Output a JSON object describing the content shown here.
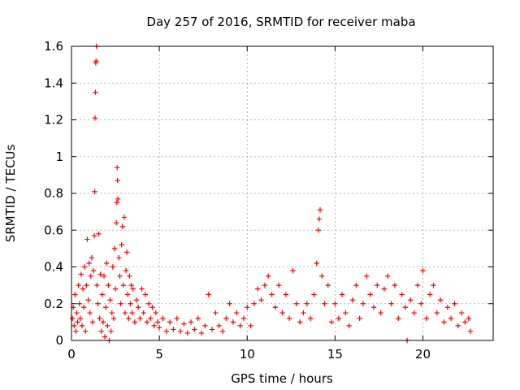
{
  "chart_data": {
    "type": "scatter",
    "title": "Day 257 of 2016, SRMTID for receiver maba",
    "xlabel": "GPS time / hours",
    "ylabel": "SRMTID / TECUs",
    "xlim": [
      0,
      24
    ],
    "ylim": [
      0,
      1.6
    ],
    "xticks": [
      "0",
      "5",
      "10",
      "15",
      "20"
    ],
    "yticks": [
      "0",
      "0.2",
      "0.4",
      "0.6",
      "0.8",
      "1",
      "1.2",
      "1.4",
      "1.6"
    ],
    "grid": true,
    "marker": "plus",
    "series_color": "#ff0000",
    "series": [
      {
        "name": "SRMTID",
        "points": [
          [
            0.05,
            0.12
          ],
          [
            0.1,
            0.18
          ],
          [
            0.15,
            0.08
          ],
          [
            0.2,
            0.25
          ],
          [
            0.25,
            0.05
          ],
          [
            0.3,
            0.15
          ],
          [
            0.35,
            0.1
          ],
          [
            0.4,
            0.3
          ],
          [
            0.45,
            0.2
          ],
          [
            0.5,
            0.12
          ],
          [
            0.55,
            0.36
          ],
          [
            0.6,
            0.08
          ],
          [
            0.65,
            0.28
          ],
          [
            0.7,
            0.18
          ],
          [
            0.75,
            0.4
          ],
          [
            0.8,
            0.05
          ],
          [
            0.85,
            0.3
          ],
          [
            0.9,
            0.55
          ],
          [
            0.95,
            0.22
          ],
          [
            1.0,
            0.42
          ],
          [
            1.05,
            0.15
          ],
          [
            1.1,
            0.35
          ],
          [
            1.15,
            0.45
          ],
          [
            1.2,
            0.1
          ],
          [
            1.25,
            0.38
          ],
          [
            1.3,
            0.57
          ],
          [
            1.32,
            0.81
          ],
          [
            1.34,
            1.21
          ],
          [
            1.36,
            1.35
          ],
          [
            1.38,
            1.51
          ],
          [
            1.4,
            1.52
          ],
          [
            1.42,
            1.6
          ],
          [
            1.45,
            0.3
          ],
          [
            1.5,
            0.2
          ],
          [
            1.55,
            0.58
          ],
          [
            1.6,
            0.12
          ],
          [
            1.65,
            0.36
          ],
          [
            1.7,
            0.05
          ],
          [
            1.75,
            0.25
          ],
          [
            1.8,
            0.1
          ],
          [
            1.85,
            0.35
          ],
          [
            1.9,
            0.02
          ],
          [
            1.95,
            0.18
          ],
          [
            2.0,
            0.42
          ],
          [
            2.05,
            0.08
          ],
          [
            2.1,
            0.3
          ],
          [
            2.15,
            0.0
          ],
          [
            2.2,
            0.22
          ],
          [
            2.25,
            0.05
          ],
          [
            2.3,
            0.15
          ],
          [
            2.35,
            0.4
          ],
          [
            2.4,
            0.12
          ],
          [
            2.45,
            0.5
          ],
          [
            2.5,
            0.28
          ],
          [
            2.55,
            0.64
          ],
          [
            2.58,
            0.75
          ],
          [
            2.6,
            0.94
          ],
          [
            2.62,
            0.87
          ],
          [
            2.64,
            0.77
          ],
          [
            2.7,
            0.45
          ],
          [
            2.75,
            0.35
          ],
          [
            2.8,
            0.2
          ],
          [
            2.85,
            0.52
          ],
          [
            2.9,
            0.62
          ],
          [
            2.95,
            0.3
          ],
          [
            3.0,
            0.67
          ],
          [
            3.05,
            0.15
          ],
          [
            3.1,
            0.38
          ],
          [
            3.15,
            0.48
          ],
          [
            3.2,
            0.25
          ],
          [
            3.25,
            0.12
          ],
          [
            3.3,
            0.35
          ],
          [
            3.35,
            0.2
          ],
          [
            3.4,
            0.3
          ],
          [
            3.45,
            0.15
          ],
          [
            3.5,
            0.28
          ],
          [
            3.6,
            0.1
          ],
          [
            3.7,
            0.22
          ],
          [
            3.8,
            0.18
          ],
          [
            3.9,
            0.12
          ],
          [
            4.0,
            0.28
          ],
          [
            4.1,
            0.15
          ],
          [
            4.2,
            0.25
          ],
          [
            4.3,
            0.1
          ],
          [
            4.4,
            0.2
          ],
          [
            4.5,
            0.12
          ],
          [
            4.6,
            0.18
          ],
          [
            4.7,
            0.08
          ],
          [
            4.8,
            0.15
          ],
          [
            4.9,
            0.1
          ],
          [
            5.0,
            0.07
          ],
          [
            5.2,
            0.12
          ],
          [
            5.4,
            0.05
          ],
          [
            5.6,
            0.1
          ],
          [
            5.8,
            0.06
          ],
          [
            6.0,
            0.12
          ],
          [
            6.2,
            0.05
          ],
          [
            6.4,
            0.09
          ],
          [
            6.6,
            0.04
          ],
          [
            6.8,
            0.1
          ],
          [
            7.0,
            0.06
          ],
          [
            7.2,
            0.12
          ],
          [
            7.4,
            0.04
          ],
          [
            7.6,
            0.08
          ],
          [
            7.8,
            0.25
          ],
          [
            8.0,
            0.06
          ],
          [
            8.2,
            0.15
          ],
          [
            8.4,
            0.08
          ],
          [
            8.6,
            0.05
          ],
          [
            8.8,
            0.12
          ],
          [
            9.0,
            0.2
          ],
          [
            9.2,
            0.1
          ],
          [
            9.4,
            0.15
          ],
          [
            9.6,
            0.08
          ],
          [
            9.8,
            0.12
          ],
          [
            10.0,
            0.18
          ],
          [
            10.2,
            0.08
          ],
          [
            10.4,
            0.2
          ],
          [
            10.6,
            0.28
          ],
          [
            10.8,
            0.22
          ],
          [
            11.0,
            0.3
          ],
          [
            11.2,
            0.35
          ],
          [
            11.4,
            0.25
          ],
          [
            11.6,
            0.18
          ],
          [
            11.8,
            0.3
          ],
          [
            12.0,
            0.15
          ],
          [
            12.2,
            0.25
          ],
          [
            12.4,
            0.12
          ],
          [
            12.6,
            0.38
          ],
          [
            12.8,
            0.2
          ],
          [
            13.0,
            0.1
          ],
          [
            13.2,
            0.15
          ],
          [
            13.4,
            0.2
          ],
          [
            13.6,
            0.12
          ],
          [
            13.8,
            0.25
          ],
          [
            13.95,
            0.42
          ],
          [
            14.05,
            0.6
          ],
          [
            14.1,
            0.66
          ],
          [
            14.15,
            0.71
          ],
          [
            14.25,
            0.35
          ],
          [
            14.4,
            0.2
          ],
          [
            14.6,
            0.3
          ],
          [
            14.8,
            0.1
          ],
          [
            15.0,
            0.2
          ],
          [
            15.2,
            0.12
          ],
          [
            15.4,
            0.25
          ],
          [
            15.6,
            0.15
          ],
          [
            15.8,
            0.08
          ],
          [
            16.0,
            0.22
          ],
          [
            16.2,
            0.3
          ],
          [
            16.4,
            0.12
          ],
          [
            16.6,
            0.2
          ],
          [
            16.8,
            0.35
          ],
          [
            17.0,
            0.25
          ],
          [
            17.2,
            0.18
          ],
          [
            17.4,
            0.3
          ],
          [
            17.6,
            0.15
          ],
          [
            17.8,
            0.28
          ],
          [
            18.0,
            0.35
          ],
          [
            18.2,
            0.2
          ],
          [
            18.4,
            0.3
          ],
          [
            18.6,
            0.12
          ],
          [
            18.8,
            0.25
          ],
          [
            19.0,
            0.18
          ],
          [
            19.1,
            0.0
          ],
          [
            19.3,
            0.22
          ],
          [
            19.5,
            0.15
          ],
          [
            19.7,
            0.3
          ],
          [
            19.9,
            0.2
          ],
          [
            20.0,
            0.38
          ],
          [
            20.2,
            0.12
          ],
          [
            20.4,
            0.25
          ],
          [
            20.6,
            0.3
          ],
          [
            20.8,
            0.15
          ],
          [
            21.0,
            0.22
          ],
          [
            21.2,
            0.1
          ],
          [
            21.4,
            0.18
          ],
          [
            21.6,
            0.12
          ],
          [
            21.8,
            0.2
          ],
          [
            22.0,
            0.08
          ],
          [
            22.2,
            0.15
          ],
          [
            22.4,
            0.1
          ],
          [
            22.6,
            0.12
          ],
          [
            22.7,
            0.05
          ]
        ]
      }
    ]
  }
}
